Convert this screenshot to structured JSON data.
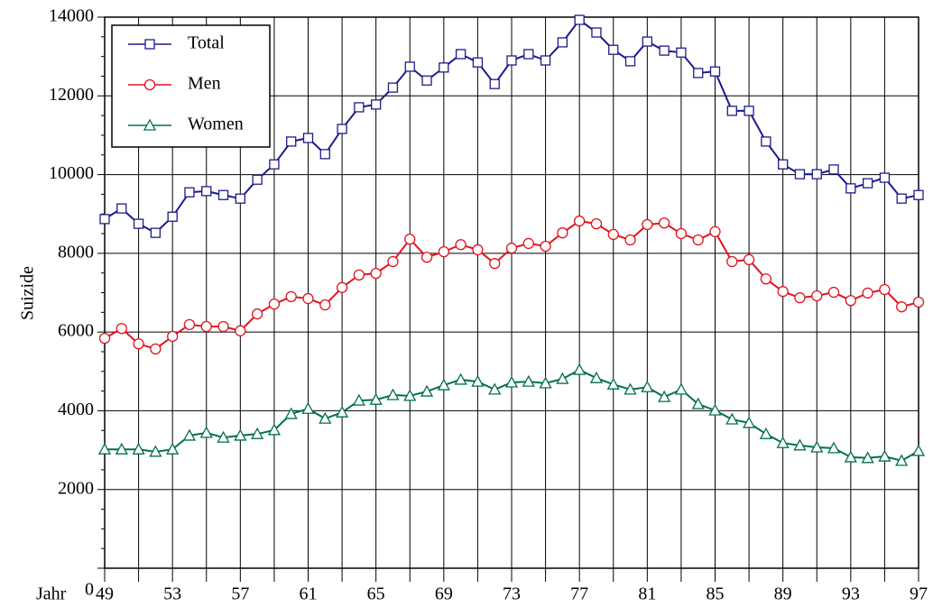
{
  "chart_data": {
    "type": "line",
    "x_label": "Jahr",
    "y_label": "Suizide",
    "x": [
      49,
      50,
      51,
      52,
      53,
      54,
      55,
      56,
      57,
      58,
      59,
      60,
      61,
      62,
      63,
      64,
      65,
      66,
      67,
      68,
      69,
      70,
      71,
      72,
      73,
      74,
      75,
      76,
      77,
      78,
      79,
      80,
      81,
      82,
      83,
      84,
      85,
      86,
      87,
      88,
      89,
      90,
      91,
      92,
      93,
      94,
      95,
      96,
      97
    ],
    "xlim": [
      49,
      97
    ],
    "xticks": [
      49,
      53,
      57,
      61,
      65,
      69,
      73,
      77,
      81,
      85,
      89,
      93,
      97
    ],
    "ylim": [
      0,
      14000
    ],
    "yticks": [
      0,
      2000,
      4000,
      6000,
      8000,
      10000,
      12000,
      14000
    ],
    "grid": true,
    "legend": "upper left",
    "series": [
      {
        "name": "Total",
        "color": "#1c1c8a",
        "marker": "square",
        "values": [
          8870,
          9140,
          8750,
          8520,
          8930,
          9550,
          9580,
          9480,
          9390,
          9870,
          10260,
          10840,
          10930,
          10520,
          11160,
          11710,
          11780,
          12210,
          12740,
          12390,
          12720,
          13060,
          12850,
          12300,
          12900,
          13060,
          12900,
          13360,
          13930,
          13610,
          13170,
          12880,
          13380,
          13150,
          13100,
          12580,
          12620,
          11620,
          11620,
          10840,
          10260,
          10010,
          10010,
          10130,
          9650,
          9780,
          9920,
          9390,
          9480
        ]
      },
      {
        "name": "Men",
        "color": "#e0141e",
        "marker": "circle",
        "values": [
          5840,
          6090,
          5700,
          5570,
          5890,
          6190,
          6140,
          6140,
          6030,
          6460,
          6710,
          6900,
          6850,
          6690,
          7130,
          7450,
          7490,
          7790,
          8360,
          7900,
          8040,
          8220,
          8090,
          7740,
          8130,
          8250,
          8180,
          8520,
          8820,
          8750,
          8480,
          8340,
          8730,
          8770,
          8500,
          8340,
          8550,
          7790,
          7840,
          7350,
          7030,
          6870,
          6920,
          7010,
          6800,
          6990,
          7080,
          6640,
          6760
        ]
      },
      {
        "name": "Women",
        "color": "#00704a",
        "marker": "triangle",
        "values": [
          3020,
          3020,
          3020,
          2960,
          3020,
          3370,
          3440,
          3320,
          3370,
          3410,
          3510,
          3920,
          4050,
          3800,
          3960,
          4260,
          4280,
          4400,
          4380,
          4490,
          4650,
          4790,
          4740,
          4540,
          4720,
          4740,
          4700,
          4810,
          5040,
          4830,
          4670,
          4540,
          4600,
          4350,
          4540,
          4170,
          4010,
          3780,
          3690,
          3410,
          3180,
          3120,
          3070,
          3050,
          2820,
          2800,
          2840,
          2730,
          2980
        ]
      }
    ]
  }
}
